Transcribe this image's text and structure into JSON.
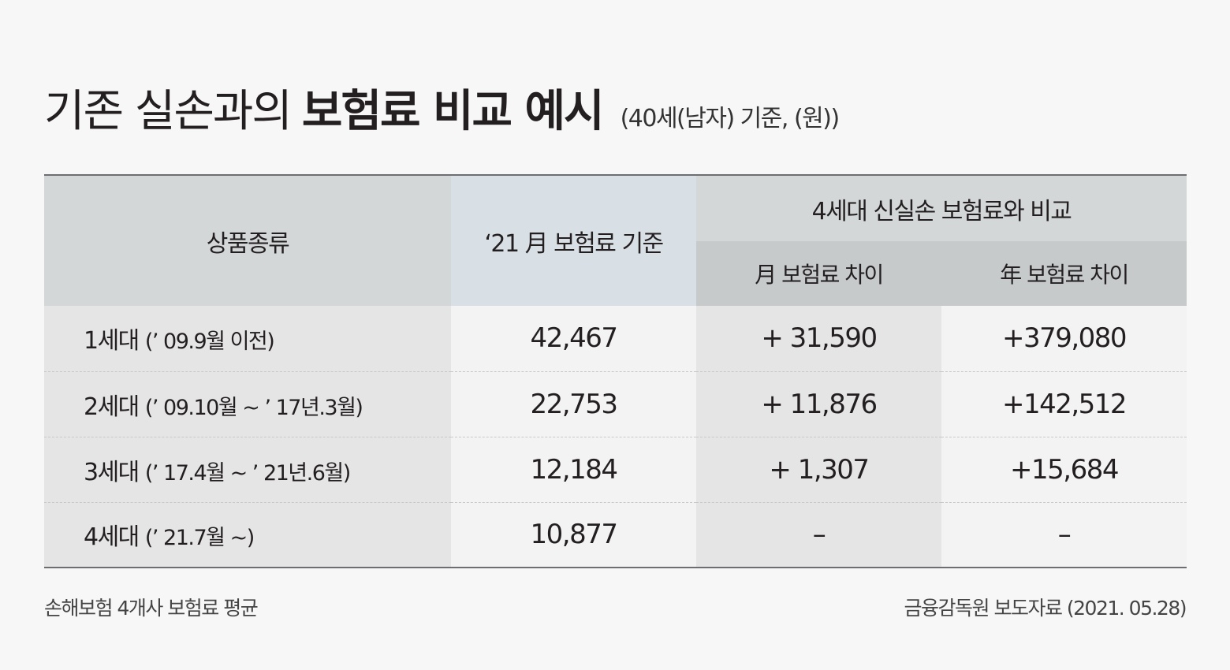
{
  "title": {
    "light": "기존 실손과의",
    "bold": "보험료 비교 예시",
    "sub": "(40세(남자) 기준, (원))"
  },
  "table": {
    "headers": {
      "kind": "상품종류",
      "base": "‘21 月 보험료 기준",
      "group": "4세대 신실손 보험료와 비교",
      "monthly": "月 보험료 차이",
      "yearly": "年 보험료 차이"
    },
    "rows": [
      {
        "gen": "1세대",
        "period": "(’ 09.9월 이전)",
        "premium": "42,467",
        "monthly_diff": "+ 31,590",
        "yearly_diff": "+379,080"
      },
      {
        "gen": "2세대",
        "period": "(’ 09.10월 ~ ’ 17년.3월)",
        "premium": "22,753",
        "monthly_diff": "+ 11,876",
        "yearly_diff": "+142,512"
      },
      {
        "gen": "3세대",
        "period": "(’ 17.4월 ~ ’ 21년.6월)",
        "premium": "12,184",
        "monthly_diff": "+ 1,307",
        "yearly_diff": "+15,684"
      },
      {
        "gen": "4세대",
        "period": "(’ 21.7월 ~)",
        "premium": "10,877",
        "monthly_diff": "–",
        "yearly_diff": "–"
      }
    ]
  },
  "footer": {
    "note": "손해보험 4개사 보험료 평균",
    "source": "금융감독원 보도자료 (2021. 05.28)"
  }
}
